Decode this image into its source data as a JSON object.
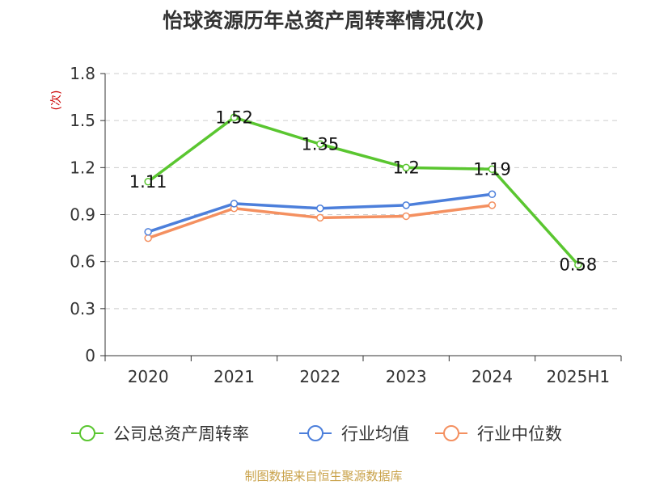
{
  "chart_data": {
    "type": "line",
    "title": "怡球资源历年总资产周转率情况(次)",
    "ylabel": "(次)",
    "xlabel": "",
    "categories": [
      "2020",
      "2021",
      "2022",
      "2023",
      "2024",
      "2025H1"
    ],
    "ylim": [
      0,
      1.8
    ],
    "yticks": [
      "0",
      "0.3",
      "0.6",
      "0.9",
      "1.2",
      "1.5",
      "1.8"
    ],
    "grid": true,
    "legend_position": "bottom",
    "series": [
      {
        "name": "公司总资产周转率",
        "color": "#5ac630",
        "values": [
          1.11,
          1.52,
          1.35,
          1.2,
          1.19,
          0.58
        ],
        "data_labels": [
          "1.11",
          "1.52",
          "1.35",
          "1.2",
          "1.19",
          "0.58"
        ]
      },
      {
        "name": "行业均值",
        "color": "#4c7fdb",
        "values": [
          0.79,
          0.97,
          0.94,
          0.96,
          1.03,
          null
        ]
      },
      {
        "name": "行业中位数",
        "color": "#f49060",
        "values": [
          0.75,
          0.94,
          0.88,
          0.89,
          0.96,
          null
        ]
      }
    ]
  },
  "footer": {
    "source": "制图数据来自恒生聚源数据库"
  }
}
